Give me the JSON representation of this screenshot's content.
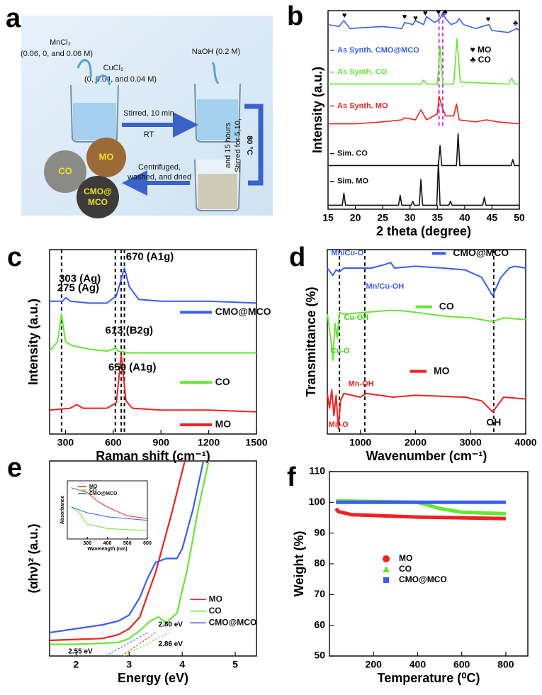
{
  "diagram": {
    "label": "a",
    "mncl2": "MnCl₂",
    "mn_conc": "(0.06, 0, and 0.06 M)",
    "cucl2": "CuCl₂",
    "cu_conc": "(0,  0.04, and 0.04 M)",
    "naoh": "NaOH (0.2 M)",
    "stir1": "Stirred, 10 min",
    "rt": "RT",
    "temp": "80 °C",
    "stir2a": "Stirred for  5,10,",
    "stir2b": "and 15 hours",
    "wash1": "Centrifuged,",
    "wash2": "washed, and dried",
    "co": "CO",
    "mo": "MO",
    "cmo1": "CMO@",
    "cmo2": "MCO"
  },
  "chart_data": [
    {
      "type": "line",
      "label": "b",
      "xlabel": "2 theta (degree)",
      "ylabel": "Intensity (a.u.)",
      "xlim": [
        15,
        50
      ],
      "xticks": [
        15,
        20,
        25,
        30,
        35,
        40,
        45,
        50
      ],
      "ylim": [
        0,
        100
      ],
      "ref_lines": [
        35.3,
        36.0
      ],
      "ref_color": "#c040d0",
      "series": [
        {
          "name": "As Synth. CMO@MCO",
          "color": "#3a5ef0",
          "x": [
            15,
            17,
            17.9,
            19,
            25,
            28.5,
            29,
            30.5,
            31,
            32.5,
            33,
            34.5,
            35.5,
            36,
            36.5,
            37.5,
            38.5,
            39,
            39.8,
            42,
            44.4,
            45,
            48,
            49.5,
            50
          ],
          "values": [
            93,
            92,
            95,
            91,
            92,
            91,
            94,
            93,
            95,
            93,
            97,
            94,
            96,
            99,
            96,
            93,
            94,
            96,
            93,
            91,
            93,
            90,
            89,
            91,
            90
          ]
        },
        {
          "name": "As Synth. CO",
          "color": "#66e633",
          "x": [
            15,
            32,
            32.5,
            33,
            35,
            35.5,
            36,
            38,
            38.6,
            39.2,
            48,
            48.6,
            49.2,
            50
          ],
          "values": [
            63,
            63,
            65,
            63,
            63,
            82,
            63,
            63,
            86,
            64,
            63,
            66,
            63,
            63
          ]
        },
        {
          "name": "As Synth. MO",
          "color": "#ee2222",
          "x": [
            15,
            20,
            25,
            28.5,
            29,
            31,
            32,
            33,
            35,
            35.3,
            35.8,
            36.5,
            38,
            38.5,
            39,
            42,
            44,
            46,
            50
          ],
          "values": [
            43,
            43,
            44,
            45,
            46,
            45,
            50,
            45,
            48,
            57,
            52,
            47,
            47,
            53,
            45,
            44,
            45,
            44,
            43
          ]
        },
        {
          "name": "Sim. CO",
          "color": "#111111",
          "x": [
            15,
            35.2,
            35.5,
            35.8,
            38.5,
            38.8,
            39.1,
            48.5,
            48.8,
            49.1,
            50
          ],
          "values": [
            22,
            22,
            32,
            22,
            22,
            38,
            22,
            22,
            25,
            22,
            22
          ]
        },
        {
          "name": "Sim. MO",
          "color": "#111111",
          "x": [
            15,
            17.6,
            17.9,
            18.2,
            27.9,
            28.2,
            28.5,
            30.2,
            30.5,
            30.8,
            31.7,
            32,
            32.3,
            34.9,
            35.2,
            35.5,
            37.1,
            37.4,
            37.7,
            43.3,
            43.6,
            43.9,
            50
          ],
          "values": [
            2,
            2,
            8,
            2,
            2,
            7,
            2,
            2,
            4,
            2,
            2,
            15,
            2,
            2,
            24,
            2,
            2,
            4,
            2,
            2,
            6,
            2,
            2
          ]
        }
      ],
      "annotations": [
        "♥",
        "♥",
        "♥",
        "♥",
        "♥",
        "♣",
        "♥",
        "♣",
        "♥ MO",
        "♣ CO"
      ]
    },
    {
      "type": "line",
      "label": "c",
      "xlabel": "Raman shift (cm⁻¹)",
      "ylabel": "Intensity (a.u.)",
      "xlim": [
        200,
        1500
      ],
      "xticks": [
        300,
        600,
        900,
        1200,
        1500
      ],
      "ylim": [
        0,
        100
      ],
      "ref_lines": [
        275,
        613,
        650,
        670
      ],
      "ref_color": "#111111",
      "series": [
        {
          "name": "CMO@MCO",
          "color": "#3a5ef0",
          "x": [
            200,
            280,
            303,
            330,
            450,
            560,
            620,
            650,
            670,
            700,
            760,
            900,
            1200,
            1500
          ],
          "values": [
            72,
            72,
            74,
            72,
            71,
            71,
            75,
            84,
            90,
            80,
            73,
            72,
            72,
            71
          ]
        },
        {
          "name": "CO",
          "color": "#66e633",
          "x": [
            200,
            250,
            275,
            300,
            340,
            450,
            560,
            600,
            613,
            630,
            700,
            900,
            1200,
            1500
          ],
          "values": [
            45,
            50,
            65,
            50,
            48,
            46,
            45,
            46,
            47,
            45,
            44,
            44,
            44,
            44
          ]
        },
        {
          "name": "MO",
          "color": "#ee2222",
          "x": [
            200,
            330,
            370,
            410,
            560,
            620,
            650,
            680,
            720,
            900,
            1200,
            1500
          ],
          "values": [
            13,
            14,
            16,
            14,
            14,
            17,
            43,
            18,
            14,
            13,
            13,
            12
          ]
        }
      ],
      "annotations": [
        "303 (Ag)",
        "670 (A1g)",
        "275 (Ag)",
        "613 (B2g)",
        "650 (A1g)"
      ]
    },
    {
      "type": "line",
      "label": "d",
      "xlabel": "Wavenumber (cm⁻¹)",
      "ylabel": "Transmittance (%)",
      "xlim": [
        400,
        4000
      ],
      "xticks": [
        1000,
        2000,
        3000,
        4000
      ],
      "ylim": [
        0,
        100
      ],
      "ref_lines": [
        620,
        1080,
        3420
      ],
      "ref_color": "#111111",
      "series": [
        {
          "name": "CMO@MCO",
          "color": "#3a5ef0",
          "x": [
            400,
            500,
            560,
            620,
            700,
            1000,
            1200,
            1450,
            1550,
            1620,
            2000,
            2500,
            2900,
            3200,
            3400,
            3550,
            3700,
            3800,
            4000
          ],
          "values": [
            90,
            86,
            89,
            88,
            90,
            90,
            90,
            92,
            93,
            90,
            91,
            90,
            89,
            85,
            75,
            85,
            90,
            91,
            90
          ]
        },
        {
          "name": "CO",
          "color": "#66e633",
          "x": [
            400,
            470,
            500,
            540,
            580,
            620,
            700,
            1500,
            1700,
            2000,
            2500,
            3000,
            3400,
            3600,
            4000
          ],
          "values": [
            65,
            50,
            40,
            60,
            52,
            66,
            65,
            67,
            67,
            66,
            64,
            63,
            61,
            63,
            62
          ]
        },
        {
          "name": "MO",
          "color": "#ee2222",
          "x": [
            400,
            440,
            480,
            520,
            560,
            600,
            640,
            700,
            1000,
            1100,
            1600,
            2000,
            2900,
            3200,
            3400,
            3600,
            4000
          ],
          "values": [
            22,
            14,
            24,
            10,
            21,
            3,
            18,
            22,
            20,
            22,
            20,
            21,
            20,
            18,
            12,
            20,
            19
          ]
        }
      ],
      "annotations": [
        "Mn/Cu-O",
        "Mn/Cu-OH",
        "Cu-OH",
        "Cu-O",
        "Mn-OH",
        "Mn-O",
        "OH"
      ]
    },
    {
      "type": "line",
      "label": "e",
      "xlabel": "Energy (eV)",
      "ylabel": "(αhν)² (a.u.)",
      "xlim": [
        1.5,
        5.4
      ],
      "xticks": [
        2,
        3,
        4,
        5
      ],
      "ylim": [
        0,
        100
      ],
      "series": [
        {
          "name": "MO",
          "color": "#ee2222",
          "x": [
            1.5,
            2,
            2.5,
            2.8,
            3.0,
            3.2,
            3.5,
            3.8,
            4.05
          ],
          "values": [
            8,
            8.5,
            9,
            11,
            14,
            20,
            43,
            73,
            100
          ]
        },
        {
          "name": "CO",
          "color": "#66e633",
          "x": [
            1.5,
            2,
            2.5,
            2.8,
            3.0,
            3.2,
            3.4,
            3.55,
            3.7,
            3.9,
            4.1,
            4.3,
            4.5
          ],
          "values": [
            6,
            6,
            6.5,
            7,
            9,
            13,
            18,
            20,
            17,
            22,
            45,
            75,
            100
          ]
        },
        {
          "name": "CMO@MCO",
          "color": "#3a5ef0",
          "x": [
            1.5,
            2,
            2.5,
            2.8,
            3.0,
            3.2,
            3.35,
            3.5,
            3.7,
            3.9,
            4.0,
            4.2,
            4.4
          ],
          "values": [
            12,
            14,
            16,
            18,
            21,
            30,
            40,
            48,
            50,
            50,
            55,
            75,
            100
          ]
        }
      ],
      "annotations": [
        "2.55 eV",
        "2.80 eV",
        "2.86 eV"
      ],
      "inset": {
        "type": "line",
        "xlabel": "Wavelength (nm)",
        "ylabel": "Absorbance",
        "xlim": [
          200,
          600
        ],
        "xticks": [
          300,
          400,
          500,
          600
        ],
        "ylim": [
          0,
          100
        ],
        "series": [
          {
            "name": "MO",
            "color": "#ee2222",
            "x": [
              220,
              250,
              300,
              350,
              400,
              500,
              600
            ],
            "values": [
              88,
              85,
              80,
              65,
              55,
              40,
              35
            ]
          },
          {
            "name": "CO",
            "color": "#66e633",
            "x": [
              220,
              260,
              300,
              350,
              400,
              500,
              600
            ],
            "values": [
              55,
              45,
              25,
              22,
              18,
              16,
              15
            ]
          },
          {
            "name": "CMO@MCO",
            "color": "#3a5ef0",
            "x": [
              220,
              260,
              300,
              350,
              400,
              500,
              600
            ],
            "values": [
              55,
              50,
              45,
              42,
              38,
              35,
              32
            ]
          }
        ]
      }
    },
    {
      "type": "line",
      "label": "f",
      "xlabel": "Temperature (⁰C)",
      "ylabel": "Weight (%)",
      "xlim": [
        0,
        900
      ],
      "xticks": [
        200,
        400,
        600,
        800
      ],
      "ylim": [
        50,
        110
      ],
      "yticks": [
        50,
        60,
        70,
        80,
        90,
        100,
        110
      ],
      "series": [
        {
          "name": "MO",
          "color": "#ee2222",
          "marker": "circle",
          "x": [
            30,
            40,
            100,
            400,
            800
          ],
          "values": [
            98,
            97,
            96,
            95.2,
            94.7
          ]
        },
        {
          "name": "CO",
          "color": "#66e633",
          "marker": "triangle",
          "x": [
            30,
            400,
            500,
            600,
            800
          ],
          "values": [
            100.5,
            100,
            98,
            96.8,
            96.3
          ]
        },
        {
          "name": "CMO@MCO",
          "color": "#3a5ef0",
          "marker": "square",
          "x": [
            30,
            800
          ],
          "values": [
            100,
            100
          ]
        }
      ]
    }
  ]
}
